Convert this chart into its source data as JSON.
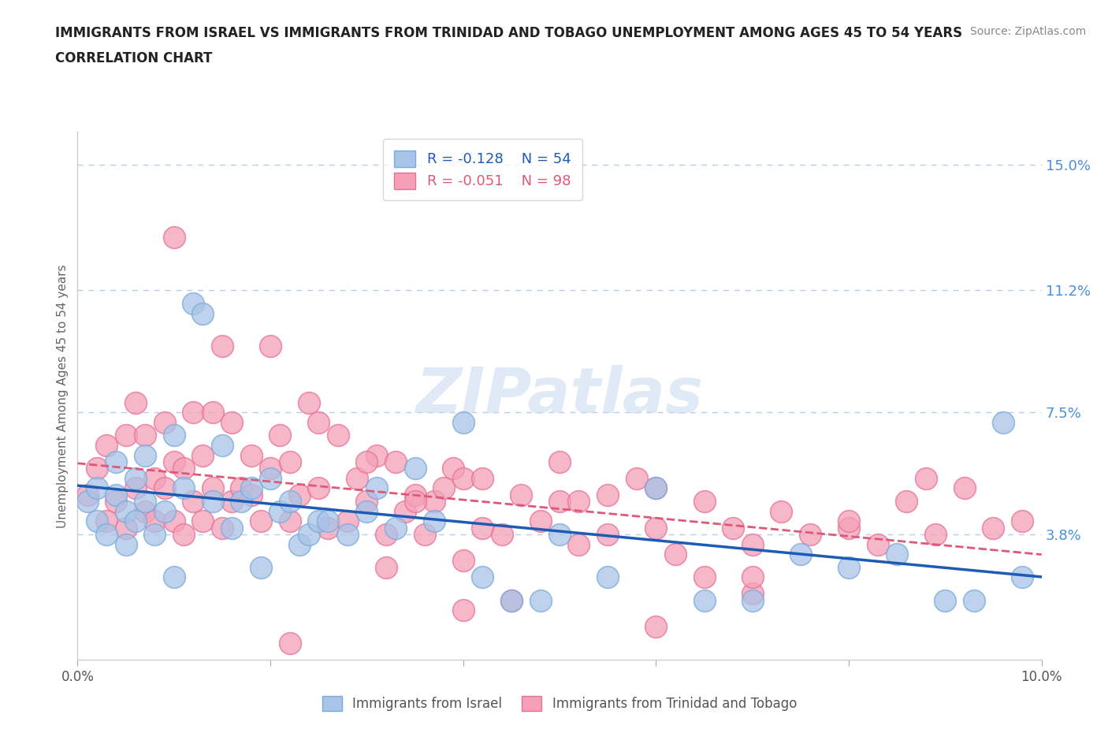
{
  "title_line1": "IMMIGRANTS FROM ISRAEL VS IMMIGRANTS FROM TRINIDAD AND TOBAGO UNEMPLOYMENT AMONG AGES 45 TO 54 YEARS",
  "title_line2": "CORRELATION CHART",
  "source_text": "Source: ZipAtlas.com",
  "ylabel": "Unemployment Among Ages 45 to 54 years",
  "xlim": [
    0.0,
    0.1
  ],
  "ylim": [
    0.0,
    0.16
  ],
  "yticks": [
    0.038,
    0.075,
    0.112,
    0.15
  ],
  "ytick_labels": [
    "3.8%",
    "7.5%",
    "11.2%",
    "15.0%"
  ],
  "xticks": [
    0.0,
    0.02,
    0.04,
    0.06,
    0.08,
    0.1
  ],
  "xtick_labels": [
    "0.0%",
    "",
    "",
    "",
    "",
    "10.0%"
  ],
  "israel_R": -0.128,
  "israel_N": 54,
  "tt_R": -0.051,
  "tt_N": 98,
  "israel_color": "#a8c4e8",
  "tt_color": "#f4a0b8",
  "israel_edge_color": "#7aaad8",
  "tt_edge_color": "#e87098",
  "israel_line_color": "#1e5bb5",
  "tt_line_color": "#e05878",
  "watermark": "ZIPatlas",
  "background_color": "#ffffff",
  "grid_color": "#b8cce8",
  "israel_x": [
    0.001,
    0.002,
    0.002,
    0.003,
    0.004,
    0.004,
    0.005,
    0.005,
    0.006,
    0.006,
    0.007,
    0.007,
    0.008,
    0.009,
    0.01,
    0.01,
    0.011,
    0.012,
    0.013,
    0.014,
    0.015,
    0.016,
    0.017,
    0.018,
    0.019,
    0.02,
    0.021,
    0.022,
    0.023,
    0.024,
    0.025,
    0.026,
    0.028,
    0.03,
    0.031,
    0.033,
    0.035,
    0.037,
    0.04,
    0.042,
    0.045,
    0.048,
    0.05,
    0.055,
    0.06,
    0.065,
    0.07,
    0.075,
    0.08,
    0.085,
    0.09,
    0.093,
    0.096,
    0.098
  ],
  "israel_y": [
    0.048,
    0.042,
    0.052,
    0.038,
    0.05,
    0.06,
    0.035,
    0.045,
    0.042,
    0.055,
    0.048,
    0.062,
    0.038,
    0.045,
    0.068,
    0.025,
    0.052,
    0.108,
    0.105,
    0.048,
    0.065,
    0.04,
    0.048,
    0.052,
    0.028,
    0.055,
    0.045,
    0.048,
    0.035,
    0.038,
    0.042,
    0.042,
    0.038,
    0.045,
    0.052,
    0.04,
    0.058,
    0.042,
    0.072,
    0.025,
    0.018,
    0.018,
    0.038,
    0.025,
    0.052,
    0.018,
    0.018,
    0.032,
    0.028,
    0.032,
    0.018,
    0.018,
    0.072,
    0.025
  ],
  "tt_x": [
    0.001,
    0.002,
    0.003,
    0.003,
    0.004,
    0.005,
    0.005,
    0.006,
    0.006,
    0.007,
    0.007,
    0.008,
    0.008,
    0.009,
    0.009,
    0.01,
    0.01,
    0.011,
    0.011,
    0.012,
    0.012,
    0.013,
    0.013,
    0.014,
    0.014,
    0.015,
    0.016,
    0.016,
    0.017,
    0.018,
    0.018,
    0.019,
    0.02,
    0.021,
    0.022,
    0.022,
    0.023,
    0.024,
    0.025,
    0.026,
    0.027,
    0.028,
    0.029,
    0.03,
    0.031,
    0.032,
    0.033,
    0.034,
    0.035,
    0.036,
    0.037,
    0.038,
    0.039,
    0.04,
    0.042,
    0.044,
    0.046,
    0.048,
    0.05,
    0.052,
    0.055,
    0.058,
    0.06,
    0.062,
    0.065,
    0.068,
    0.07,
    0.073,
    0.076,
    0.08,
    0.083,
    0.086,
    0.089,
    0.092,
    0.095,
    0.098,
    0.01,
    0.015,
    0.02,
    0.025,
    0.03,
    0.035,
    0.04,
    0.045,
    0.05,
    0.055,
    0.06,
    0.065,
    0.07,
    0.022,
    0.032,
    0.042,
    0.052,
    0.07,
    0.08,
    0.088,
    0.04,
    0.06
  ],
  "tt_y": [
    0.05,
    0.058,
    0.042,
    0.065,
    0.048,
    0.04,
    0.068,
    0.052,
    0.078,
    0.045,
    0.068,
    0.042,
    0.055,
    0.052,
    0.072,
    0.042,
    0.06,
    0.058,
    0.038,
    0.075,
    0.048,
    0.042,
    0.062,
    0.052,
    0.075,
    0.04,
    0.048,
    0.072,
    0.052,
    0.05,
    0.062,
    0.042,
    0.058,
    0.068,
    0.042,
    0.06,
    0.05,
    0.078,
    0.052,
    0.04,
    0.068,
    0.042,
    0.055,
    0.048,
    0.062,
    0.038,
    0.06,
    0.045,
    0.05,
    0.038,
    0.048,
    0.052,
    0.058,
    0.055,
    0.04,
    0.038,
    0.05,
    0.042,
    0.048,
    0.035,
    0.05,
    0.055,
    0.04,
    0.032,
    0.048,
    0.04,
    0.035,
    0.045,
    0.038,
    0.04,
    0.035,
    0.048,
    0.038,
    0.052,
    0.04,
    0.042,
    0.128,
    0.095,
    0.095,
    0.072,
    0.06,
    0.048,
    0.03,
    0.018,
    0.06,
    0.038,
    0.052,
    0.025,
    0.02,
    0.005,
    0.028,
    0.055,
    0.048,
    0.025,
    0.042,
    0.055,
    0.015,
    0.01
  ]
}
